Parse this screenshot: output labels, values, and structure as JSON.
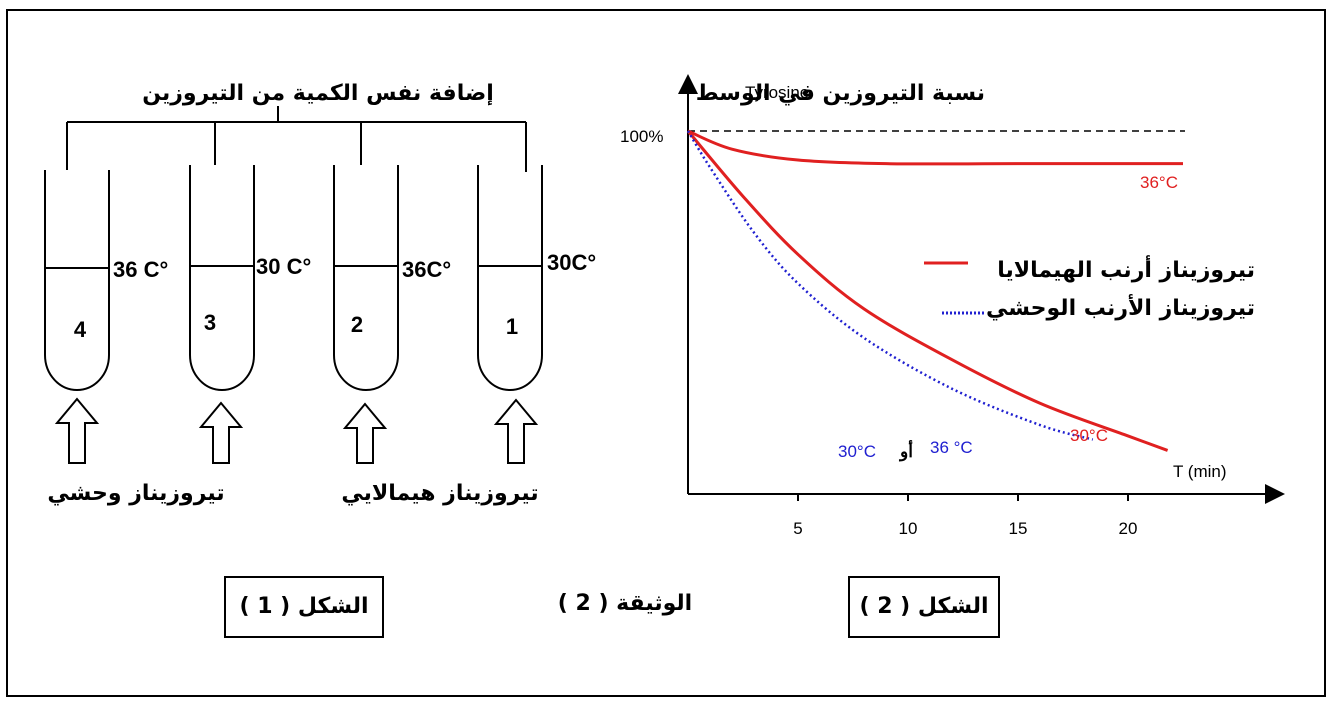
{
  "document_title": "الوثيقة ( 2 )",
  "figure1": {
    "caption": "الشكل ( 1 )",
    "top_label": "إضافة نفس الكمية من التيروزين",
    "tubes": [
      {
        "number": "1",
        "temperature": "30C°"
      },
      {
        "number": "2",
        "temperature": "36C°"
      },
      {
        "number": "3",
        "temperature": "30 C°"
      },
      {
        "number": "4",
        "temperature": "36 C°"
      }
    ],
    "label_himalayan": "تيروزيناز هيمالايي",
    "label_wild": "تيروزيناز وحشي"
  },
  "figure2": {
    "caption": "الشكل ( 2 )",
    "y_label_ar": "نسبة التيروزين في الوسط",
    "y_label_en": "Tyrosine",
    "y_tick": "100%",
    "x_label": "T (min)",
    "legend_himalayan": "تيروزيناز أرنب الهيمالايا",
    "legend_wild": "تيروزيناز الأرنب الوحشي",
    "annot_36": "36°C",
    "annot_30": "30°C",
    "annot_wild_a": "30°C",
    "annot_wild_or": "أو",
    "annot_wild_b": "36 °C",
    "colors": {
      "himalayan": "#e02020",
      "wild": "#2020d0"
    }
  },
  "chart_data": {
    "type": "line",
    "title": "",
    "xlabel": "T (min)",
    "ylabel": "نسبة التيروزين في الوسط Tyrosine",
    "x_ticks": [
      5,
      10,
      15,
      20
    ],
    "xlim": [
      0,
      25
    ],
    "ylim": [
      0,
      100
    ],
    "series": [
      {
        "name": "تيروزيناز أرنب الهيمالايا 36°C",
        "x": [
          0,
          2,
          5,
          9,
          15,
          22.5
        ],
        "y": [
          100,
          95,
          92,
          91,
          91,
          91
        ]
      },
      {
        "name": "تيروزيناز أرنب الهيمالايا 30°C",
        "x": [
          0,
          2.5,
          5,
          8,
          12,
          16,
          20,
          21.8
        ],
        "y": [
          100,
          82,
          66,
          51,
          37,
          25,
          16,
          12
        ]
      },
      {
        "name": "تيروزيناز الأرنب الوحشي 30°C أو 36 °C",
        "x": [
          0,
          1,
          3,
          5,
          8,
          12,
          16,
          18.4
        ],
        "y": [
          100,
          90,
          72,
          58,
          43,
          29,
          19,
          15
        ]
      }
    ]
  }
}
